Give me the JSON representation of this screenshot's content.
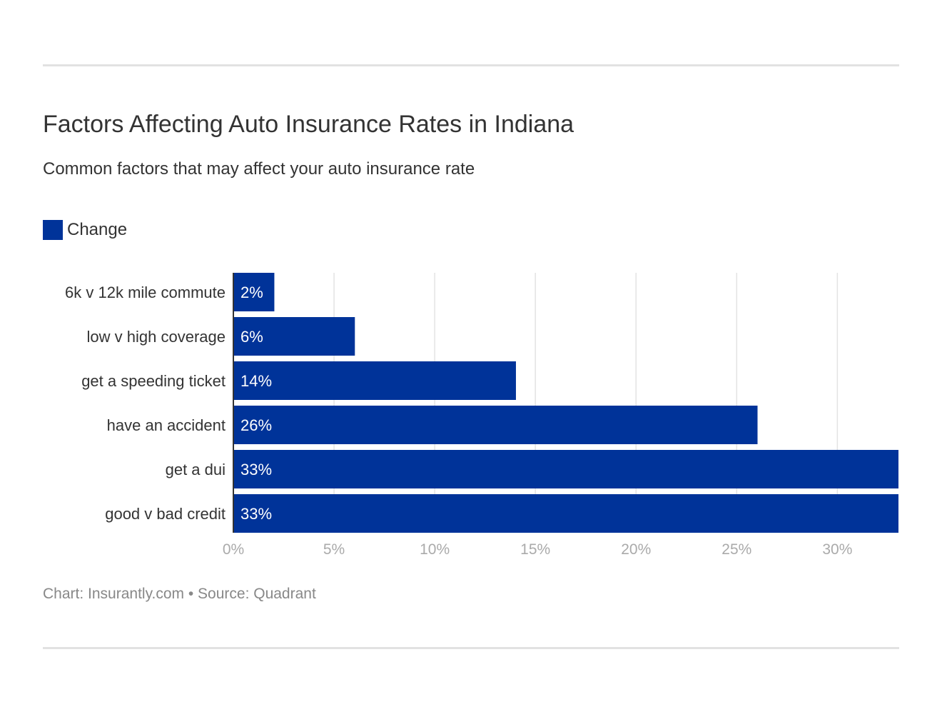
{
  "chart_data": {
    "type": "bar",
    "orientation": "horizontal",
    "title": "Factors Affecting Auto Insurance Rates in Indiana",
    "subtitle": "Common factors that may affect your auto insurance rate",
    "categories": [
      "6k v 12k mile commute",
      "low v high coverage",
      "get a speeding ticket",
      "have an accident",
      "get a dui",
      "good v bad credit"
    ],
    "series": [
      {
        "name": "Change",
        "values": [
          2,
          6,
          14,
          26,
          33,
          33
        ],
        "color": "#003399"
      }
    ],
    "data_labels": [
      "2%",
      "6%",
      "14%",
      "26%",
      "33%",
      "33%"
    ],
    "xlim": [
      0,
      33
    ],
    "x_ticks": [
      0,
      5,
      10,
      15,
      20,
      25,
      30
    ],
    "x_tick_labels": [
      "0%",
      "5%",
      "10%",
      "15%",
      "20%",
      "25%",
      "30%"
    ],
    "grid": "vertical",
    "legend": "top-left",
    "xlabel": "",
    "ylabel": ""
  },
  "footer": "Chart: Insurantly.com • Source: Quadrant"
}
